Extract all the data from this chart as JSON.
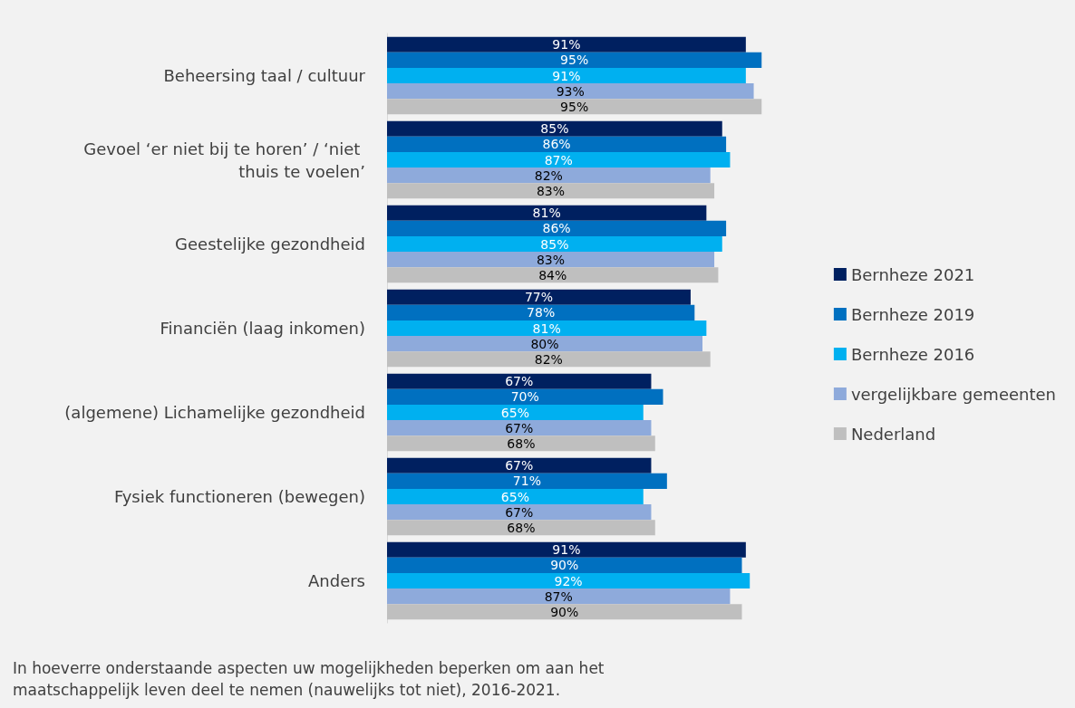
{
  "chart_data": {
    "type": "bar",
    "orientation": "horizontal",
    "categories": [
      "Beheersing taal / cultuur",
      "Gevoel ‘er niet bij te horen’ / ‘niet thuis te voelen’",
      "Geestelijke gezondheid",
      "Financiën (laag inkomen)",
      "(algemene) Lichamelijke gezondheid",
      "Fysiek functioneren (bewegen)",
      "Anders"
    ],
    "series": [
      {
        "name": "Bernheze 2021",
        "color": "#002060",
        "values": [
          91,
          85,
          81,
          77,
          67,
          67,
          91
        ],
        "value_labels": [
          "91%",
          "85%",
          "81%",
          "77%",
          "67%",
          "67%",
          "91%"
        ]
      },
      {
        "name": "Bernheze 2019",
        "color": "#0070c0",
        "values": [
          95,
          86,
          86,
          78,
          70,
          71,
          90
        ],
        "value_labels": [
          "95%",
          "86%",
          "86%",
          "78%",
          "70%",
          "71%",
          "90%"
        ]
      },
      {
        "name": "Bernheze 2016",
        "color": "#00b0f0",
        "values": [
          91,
          87,
          85,
          81,
          65,
          65,
          92
        ],
        "value_labels": [
          "91%",
          "87%",
          "85%",
          "81%",
          "65%",
          "65%",
          "92%"
        ]
      },
      {
        "name": "vergelijkbare gemeenten",
        "color": "#8eaadb",
        "values": [
          93,
          82,
          83,
          80,
          67,
          67,
          87
        ],
        "value_labels": [
          "93%",
          "82%",
          "83%",
          "80%",
          "67%",
          "67%",
          "87%"
        ]
      },
      {
        "name": "Nederland",
        "color": "#bfbfbf",
        "values": [
          95,
          83,
          84,
          82,
          68,
          68,
          90
        ],
        "value_labels": [
          "95%",
          "83%",
          "84%",
          "82%",
          "68%",
          "68%",
          "90%"
        ]
      }
    ],
    "legend": "right",
    "annotations": [
      "In hoeverre onderstaande aspecten uw mogelijkheden beperken om aan het maatschappelijk leven deel te nemen (nauwelijks tot niet), 2016-2021."
    ]
  }
}
